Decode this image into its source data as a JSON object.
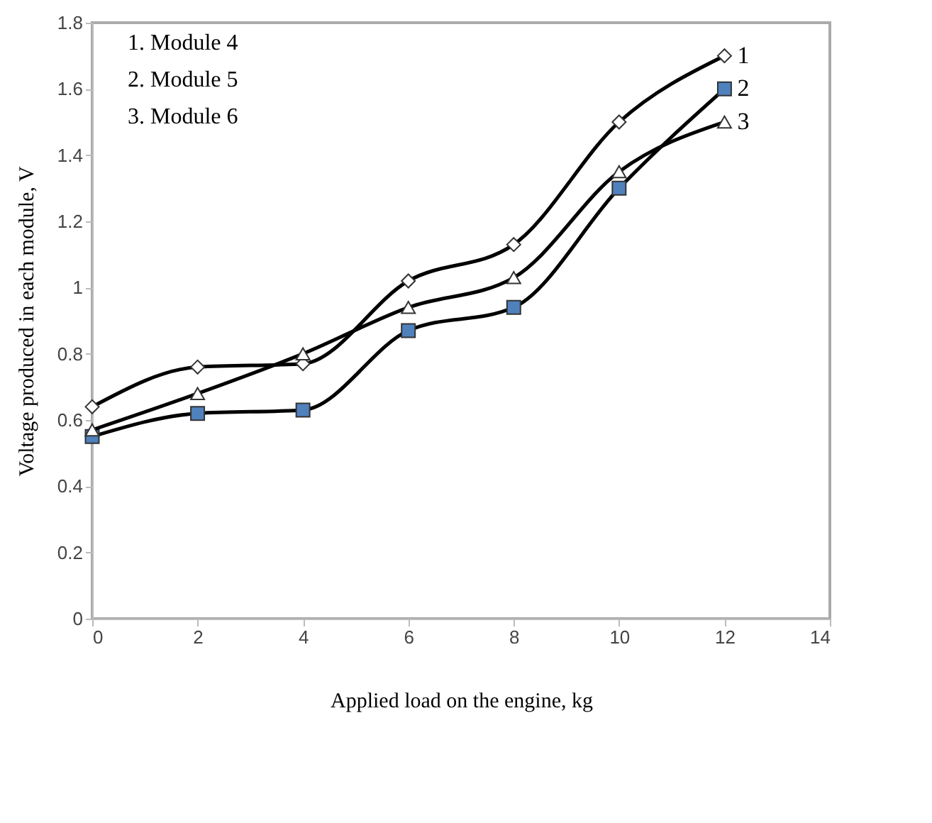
{
  "chart_data": {
    "type": "line",
    "xlabel": "Applied load on the engine, kg",
    "ylabel": "Voltage produced in each module, V",
    "x": [
      0,
      2,
      4,
      6,
      8,
      10,
      12
    ],
    "series": [
      {
        "name": "1",
        "color": "#ffffff",
        "marker": "diamond",
        "values": [
          0.64,
          0.76,
          0.77,
          1.02,
          1.13,
          1.5,
          1.7
        ]
      },
      {
        "name": "2",
        "color": "#4f81bd",
        "marker": "square",
        "values": [
          0.55,
          0.62,
          0.63,
          0.87,
          0.94,
          1.3,
          1.6
        ]
      },
      {
        "name": "3",
        "color": "#ffffff",
        "marker": "triangle",
        "values": [
          0.57,
          0.68,
          0.8,
          0.94,
          1.03,
          1.35,
          1.5
        ]
      }
    ],
    "annotations": [
      "1. Module 4",
      "2. Module 5",
      "3. Module 6"
    ],
    "xlim": [
      0,
      14
    ],
    "xticks": [
      0,
      2,
      4,
      6,
      8,
      10,
      12,
      14
    ],
    "ylim": [
      0,
      1.8
    ],
    "yticks": [
      0,
      0.2,
      0.4,
      0.6,
      0.8,
      1,
      1.2,
      1.4,
      1.6,
      1.8
    ],
    "grid": false,
    "line_style": "solid"
  }
}
